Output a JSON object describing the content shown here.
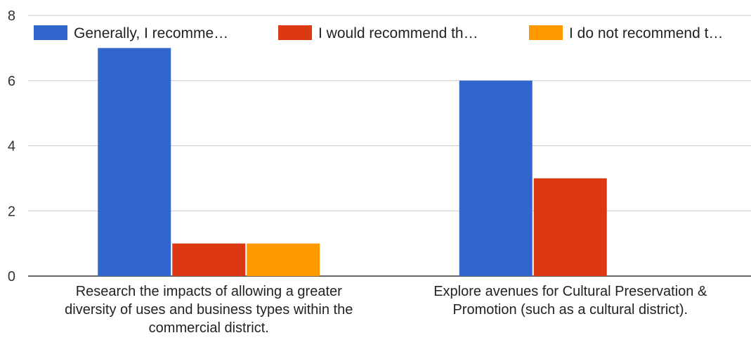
{
  "chart_data": {
    "type": "bar",
    "categories": [
      [
        "Research the impacts of allowing a greater",
        "diversity of uses and business types within the",
        "commercial district."
      ],
      [
        "Explore avenues for Cultural Preservation &",
        "Promotion (such as a cultural district)."
      ]
    ],
    "series": [
      {
        "name": "Generally, I recomme…",
        "color": "#3366cc",
        "values": [
          7,
          6
        ]
      },
      {
        "name": "I would recommend th…",
        "color": "#dc3912",
        "values": [
          1,
          3
        ]
      },
      {
        "name": "I do not recommend t…",
        "color": "#ff9900",
        "values": [
          1,
          0
        ]
      }
    ],
    "yticks": [
      0,
      2,
      4,
      6,
      8
    ],
    "ylim": [
      0,
      8
    ],
    "grid": true,
    "legend_position": "top"
  }
}
